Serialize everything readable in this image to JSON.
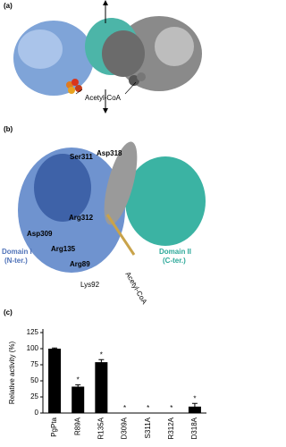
{
  "figure": {
    "panel_a": {
      "label": "(a)",
      "annotation": "Acetyl-CoA"
    },
    "panel_b": {
      "label": "(b)",
      "residues": [
        "Ser311",
        "Asp318",
        "Arg312",
        "Asp309",
        "Arg135",
        "Arg89",
        "Lys92"
      ],
      "ligand": "Acetyl-CoA",
      "domain_1": [
        "Domain I",
        "(N-ter.)"
      ],
      "domain_2": [
        "Domain II",
        "(C-ter.)"
      ]
    },
    "panel_c": {
      "label": "(c)"
    }
  },
  "chart_data": {
    "type": "bar",
    "y_label": "Relative activity (%)",
    "categories": [
      "PgPta",
      "R89A",
      "R135A",
      "D309A",
      "S311A",
      "R312A",
      "D318A"
    ],
    "values": [
      100,
      41,
      79,
      0,
      0,
      0,
      10
    ],
    "errors": [
      1,
      3,
      4,
      0,
      0,
      0,
      5
    ],
    "significance": [
      null,
      "*",
      "*",
      "*",
      "*",
      "*",
      "*"
    ],
    "color": "#000000",
    "ylim": [
      0,
      125
    ],
    "yticks": [
      0,
      25,
      50,
      75,
      100,
      125
    ]
  }
}
